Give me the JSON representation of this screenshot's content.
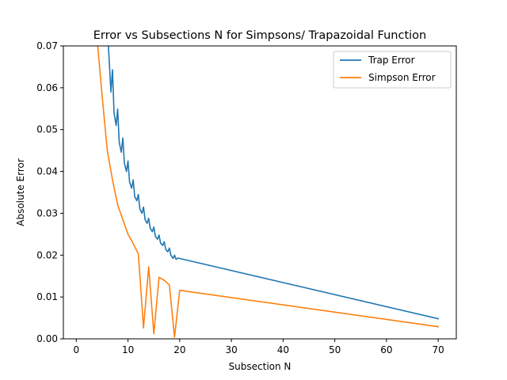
{
  "chart_data": {
    "type": "line",
    "title": "Error vs Subsections N for Simpsons/ Trapazoidal Function",
    "xlabel": "Subsection N",
    "ylabel": "Absolute Error",
    "xlim": [
      -2.5,
      73.5
    ],
    "ylim": [
      0,
      0.07
    ],
    "xticks": [
      0,
      10,
      20,
      30,
      40,
      50,
      60,
      70
    ],
    "yticks": [
      0.0,
      0.01,
      0.02,
      0.03,
      0.04,
      0.05,
      0.06,
      0.07
    ],
    "ytick_labels": [
      "0.00",
      "0.01",
      "0.02",
      "0.03",
      "0.04",
      "0.05",
      "0.06",
      "0.07"
    ],
    "grid": false,
    "legend_position": "top-right",
    "series": [
      {
        "name": "Trap Error",
        "color": "#1f77b4",
        "x": [
          6,
          6.3,
          6.7,
          7.0,
          7.3,
          7.7,
          8.0,
          8.3,
          8.7,
          9.0,
          9.3,
          9.7,
          10.0,
          10.3,
          10.7,
          11.0,
          11.3,
          11.7,
          12.0,
          12.3,
          12.7,
          13.0,
          13.3,
          13.7,
          14.0,
          14.3,
          14.7,
          15.0,
          15.3,
          15.7,
          16.0,
          16.3,
          16.7,
          17.0,
          17.3,
          17.7,
          18.0,
          18.3,
          18.7,
          19.0,
          19.3,
          19.7,
          20,
          70
        ],
        "y": [
          0.0745,
          0.068,
          0.059,
          0.0643,
          0.054,
          0.051,
          0.0549,
          0.047,
          0.0446,
          0.048,
          0.042,
          0.04,
          0.0425,
          0.0375,
          0.036,
          0.038,
          0.034,
          0.033,
          0.0345,
          0.031,
          0.03,
          0.0315,
          0.0285,
          0.0276,
          0.0288,
          0.0264,
          0.0256,
          0.0267,
          0.0245,
          0.0238,
          0.0248,
          0.0229,
          0.0223,
          0.0232,
          0.0214,
          0.0208,
          0.0217,
          0.02,
          0.0192,
          0.02,
          0.019,
          0.0193,
          0.0192,
          0.0048
        ]
      },
      {
        "name": "Simpson Error",
        "color": "#ff7f0e",
        "x": [
          4,
          5,
          6,
          7,
          8,
          9,
          10,
          11,
          12,
          13,
          14,
          15,
          16,
          17,
          18,
          19,
          20,
          70
        ],
        "y": [
          0.072,
          0.058,
          0.045,
          0.038,
          0.032,
          0.0285,
          0.025,
          0.0228,
          0.0203,
          0.0026,
          0.0172,
          0.0012,
          0.0147,
          0.014,
          0.0129,
          0.0004,
          0.0116,
          0.0029
        ]
      }
    ]
  }
}
